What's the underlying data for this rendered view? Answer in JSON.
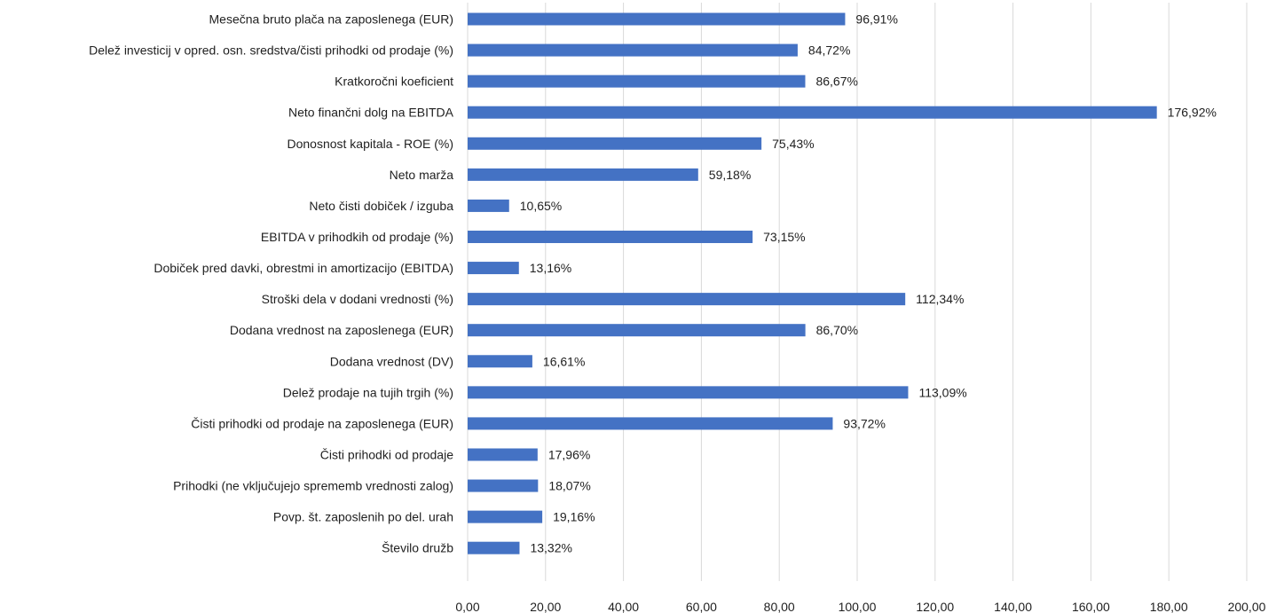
{
  "chart_data": {
    "type": "bar",
    "orientation": "horizontal",
    "title": "",
    "xlabel": "",
    "ylabel": "",
    "xlim": [
      0,
      200
    ],
    "x_ticks": [
      "0,00",
      "20,00",
      "40,00",
      "60,00",
      "80,00",
      "100,00",
      "120,00",
      "140,00",
      "160,00",
      "180,00",
      "200,00"
    ],
    "x_tick_values": [
      0,
      20,
      40,
      60,
      80,
      100,
      120,
      140,
      160,
      180,
      200
    ],
    "grid": "vertical",
    "legend": "none",
    "bar_color": "#4472c4",
    "grid_color": "#d9d9d9",
    "categories": [
      "Mesečna bruto plača na zaposlenega (EUR)",
      "Delež investicij v opred. osn. sredstva/čisti prihodki od prodaje (%)",
      "Kratkoročni koeficient",
      "Neto finančni dolg na EBITDA",
      "Donosnost kapitala - ROE (%)",
      "Neto marža",
      "Neto čisti dobiček / izguba",
      "EBITDA v prihodkih od prodaje (%)",
      "Dobiček pred davki, obrestmi in amortizacijo (EBITDA)",
      "Stroški dela v dodani vrednosti (%)",
      "Dodana vrednost na zaposlenega (EUR)",
      "Dodana vrednost (DV)",
      "Delež prodaje na tujih trgih (%)",
      "Čisti prihodki od prodaje na zaposlenega (EUR)",
      "Čisti prihodki od prodaje",
      "Prihodki (ne vključujejo sprememb vrednosti zalog)",
      "Povp. št. zaposlenih po del. urah",
      "Število družb"
    ],
    "values": [
      96.91,
      84.72,
      86.67,
      176.92,
      75.43,
      59.18,
      10.65,
      73.15,
      13.16,
      112.34,
      86.7,
      16.61,
      113.09,
      93.72,
      17.96,
      18.07,
      19.16,
      13.32
    ],
    "data_labels": [
      "96,91%",
      "84,72%",
      "86,67%",
      "176,92%",
      "75,43%",
      "59,18%",
      "10,65%",
      "73,15%",
      "13,16%",
      "112,34%",
      "86,70%",
      "16,61%",
      "113,09%",
      "93,72%",
      "17,96%",
      "18,07%",
      "19,16%",
      "13,32%"
    ]
  }
}
